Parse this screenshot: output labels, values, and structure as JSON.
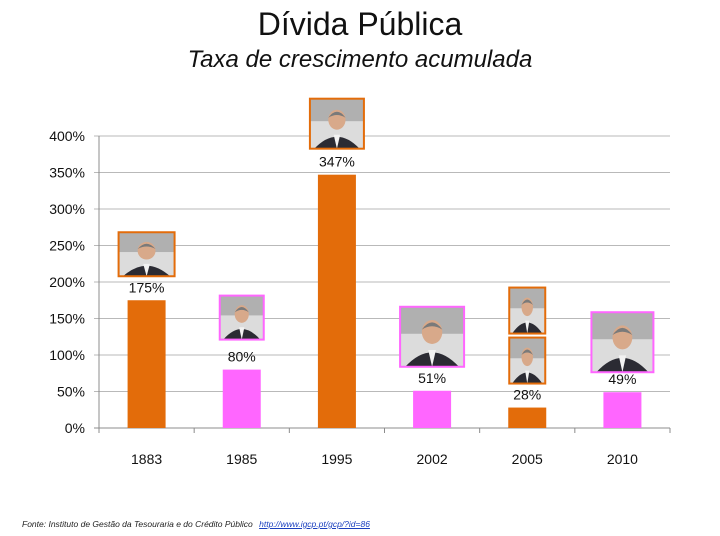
{
  "title": "Dívida Pública",
  "subtitle": "Taxa de crescimento acumulada",
  "source": {
    "text": "Fonte: Instituto de Gestão da Tesouraria e do Crédito Público",
    "link": "http://www.igcp.pt/gcp/?id=86"
  },
  "colors": {
    "orange": "#E36C0A",
    "pink": "#FF66FF",
    "grid": "#b9b9b9"
  },
  "chart_data": {
    "type": "bar",
    "categories": [
      "1883",
      "1985",
      "1995",
      "2002",
      "2005",
      "2010"
    ],
    "values": [
      175,
      80,
      347,
      51,
      28,
      49
    ],
    "data_labels": [
      "175%",
      "80%",
      "347%",
      "51%",
      "28%",
      "49%"
    ],
    "bar_colors": [
      "orange",
      "pink",
      "orange",
      "pink",
      "orange",
      "pink"
    ],
    "ylim": [
      0,
      400
    ],
    "yticks": [
      0,
      50,
      100,
      150,
      200,
      250,
      300,
      350,
      400
    ],
    "ytick_labels": [
      "0%",
      "50%",
      "100%",
      "150%",
      "200%",
      "250%",
      "300%",
      "350%",
      "400%"
    ],
    "grid": true,
    "portraits": [
      {
        "category": "1883",
        "icon": "portrait-photo"
      },
      {
        "category": "1985",
        "icon": "portrait-photo"
      },
      {
        "category": "1995",
        "icon": "portrait-photo"
      },
      {
        "category": "2002",
        "icon": "portrait-photo"
      },
      {
        "category": "2005",
        "icon": "portrait-photo-stacked"
      },
      {
        "category": "2010",
        "icon": "portrait-photo"
      }
    ]
  }
}
